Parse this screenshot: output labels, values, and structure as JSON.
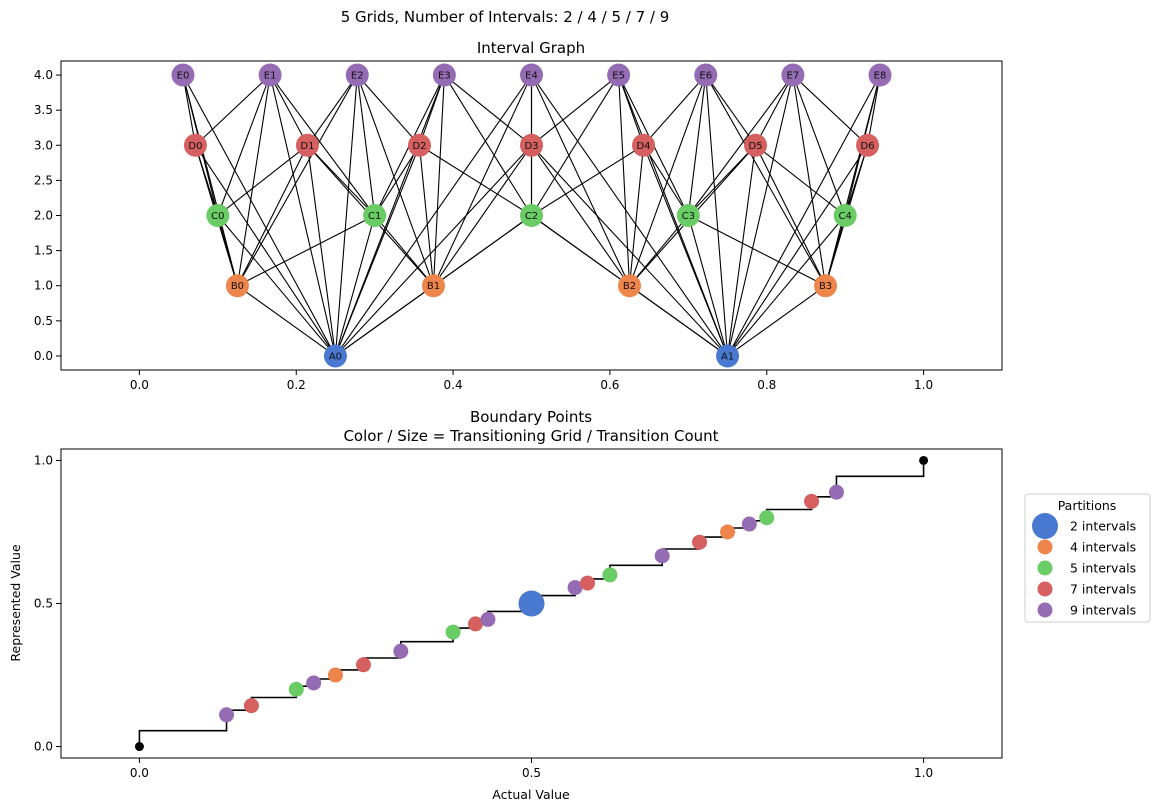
{
  "suptitle": "5 Grids, Number of Intervals: 2 / 4 / 5 / 7 / 9",
  "colors": {
    "A": "#4878d0",
    "B": "#ee854a",
    "C": "#6acc64",
    "D": "#d65f5f",
    "E": "#956cb4",
    "endpoint": "#000000"
  },
  "chart_data": [
    {
      "type": "network",
      "title": "Interval Graph",
      "xlim": [
        -0.1,
        1.1
      ],
      "ylim": [
        -0.2,
        4.2
      ],
      "xticks": [
        0.0,
        0.2,
        0.4,
        0.6,
        0.8,
        1.0
      ],
      "xtick_labels": [
        "0.0",
        "0.2",
        "0.4",
        "0.6",
        "0.8",
        "1.0"
      ],
      "yticks": [
        0.0,
        0.5,
        1.0,
        1.5,
        2.0,
        2.5,
        3.0,
        3.5,
        4.0
      ],
      "ytick_labels": [
        "0.0",
        "0.5",
        "1.0",
        "1.5",
        "2.0",
        "2.5",
        "3.0",
        "3.5",
        "4.0"
      ],
      "levels": [
        {
          "prefix": "A",
          "y": 0,
          "count": 2,
          "labels": [
            "A0",
            "A1"
          ]
        },
        {
          "prefix": "B",
          "y": 1,
          "count": 4,
          "labels": [
            "B0",
            "B1",
            "B2",
            "B3"
          ]
        },
        {
          "prefix": "C",
          "y": 2,
          "count": 5,
          "labels": [
            "C0",
            "C1",
            "C2",
            "C3",
            "C4"
          ]
        },
        {
          "prefix": "D",
          "y": 3,
          "count": 7,
          "labels": [
            "D0",
            "D1",
            "D2",
            "D3",
            "D4",
            "D5",
            "D6"
          ]
        },
        {
          "prefix": "E",
          "y": 4,
          "count": 9,
          "labels": [
            "E0",
            "E1",
            "E2",
            "E3",
            "E4",
            "E5",
            "E6",
            "E7",
            "E8"
          ]
        }
      ],
      "edges": "intervals that overlap between levels"
    },
    {
      "type": "step",
      "title": "Boundary Points",
      "subtitle": "Color / Size = Transitioning Grid / Transition Count",
      "xlabel": "Actual Value",
      "ylabel": "Represented Value",
      "xlim": [
        -0.1,
        1.1
      ],
      "ylim": [
        -0.04,
        1.04
      ],
      "xticks": [
        0.0,
        0.5,
        1.0
      ],
      "xtick_labels": [
        "0.0",
        "0.5",
        "1.0"
      ],
      "yticks": [
        0.0,
        0.5,
        1.0
      ],
      "ytick_labels": [
        "0.0",
        "0.5",
        "1.0"
      ],
      "endpoints": [
        [
          0,
          0
        ],
        [
          1,
          1
        ]
      ],
      "legend": {
        "title": "Partitions",
        "placement": "center-right outside",
        "entries": [
          {
            "label": "2 intervals",
            "grid": "A"
          },
          {
            "label": "4 intervals",
            "grid": "B"
          },
          {
            "label": "5 intervals",
            "grid": "C"
          },
          {
            "label": "7 intervals",
            "grid": "D"
          },
          {
            "label": "9 intervals",
            "grid": "E"
          }
        ]
      }
    }
  ]
}
